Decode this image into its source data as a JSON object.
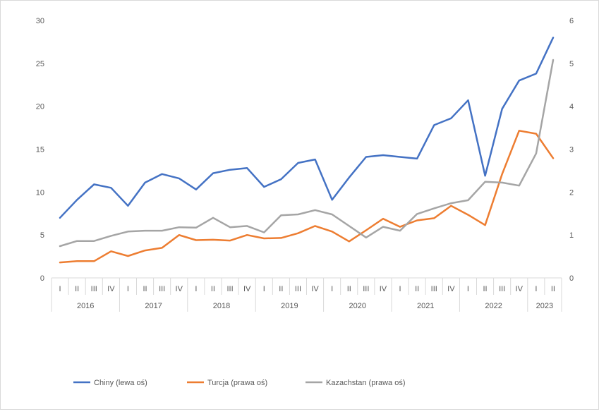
{
  "chart_data": {
    "type": "line",
    "title": "",
    "xlabel": "",
    "ylabel": "",
    "ylim_left": [
      0,
      30
    ],
    "yticks_left": [
      "0",
      "5",
      "10",
      "15",
      "20",
      "25",
      "30"
    ],
    "ylim_right": [
      0,
      6
    ],
    "yticks_right": [
      "0",
      "1",
      "2",
      "3",
      "4",
      "5",
      "6"
    ],
    "grid": false,
    "legend_position": "bottom",
    "quarters": [
      "I",
      "II",
      "III",
      "IV",
      "I",
      "II",
      "III",
      "IV",
      "I",
      "II",
      "III",
      "IV",
      "I",
      "II",
      "III",
      "IV",
      "I",
      "II",
      "III",
      "IV",
      "I",
      "II",
      "III",
      "IV",
      "I",
      "II",
      "III",
      "IV",
      "I",
      "II"
    ],
    "years": [
      {
        "label": "2016",
        "quarters": 4
      },
      {
        "label": "2017",
        "quarters": 4
      },
      {
        "label": "2018",
        "quarters": 4
      },
      {
        "label": "2019",
        "quarters": 4
      },
      {
        "label": "2020",
        "quarters": 4
      },
      {
        "label": "2021",
        "quarters": 4
      },
      {
        "label": "2022",
        "quarters": 4
      },
      {
        "label": "2023",
        "quarters": 2
      }
    ],
    "series": [
      {
        "name": "Chiny (lewa oś)",
        "axis": "left",
        "color": "#4472c4",
        "values": [
          7.0,
          9.1,
          10.9,
          10.5,
          8.4,
          11.1,
          12.1,
          11.6,
          10.3,
          12.2,
          12.6,
          12.8,
          10.6,
          11.5,
          13.4,
          13.8,
          9.1,
          11.7,
          14.1,
          14.3,
          14.1,
          13.9,
          17.8,
          18.6,
          20.7,
          11.9,
          19.7,
          23.0,
          23.8,
          28.0
        ]
      },
      {
        "name": "Turcja (prawa oś)",
        "axis": "right",
        "color": "#ed7d31",
        "values": [
          0.36,
          0.39,
          0.39,
          0.62,
          0.51,
          0.64,
          0.7,
          1.0,
          0.88,
          0.89,
          0.87,
          1.0,
          0.92,
          0.93,
          1.04,
          1.21,
          1.08,
          0.85,
          1.11,
          1.38,
          1.19,
          1.34,
          1.39,
          1.68,
          1.47,
          1.23,
          2.42,
          3.43,
          3.36,
          2.79
        ]
      },
      {
        "name": "Kazachstan (prawa oś)",
        "axis": "right",
        "color": "#a5a5a5",
        "values": [
          0.74,
          0.86,
          0.86,
          0.98,
          1.08,
          1.1,
          1.1,
          1.18,
          1.17,
          1.4,
          1.18,
          1.21,
          1.06,
          1.46,
          1.48,
          1.58,
          1.48,
          1.21,
          0.94,
          1.19,
          1.1,
          1.49,
          1.62,
          1.74,
          1.81,
          2.24,
          2.22,
          2.15,
          2.9,
          5.08
        ]
      }
    ]
  }
}
